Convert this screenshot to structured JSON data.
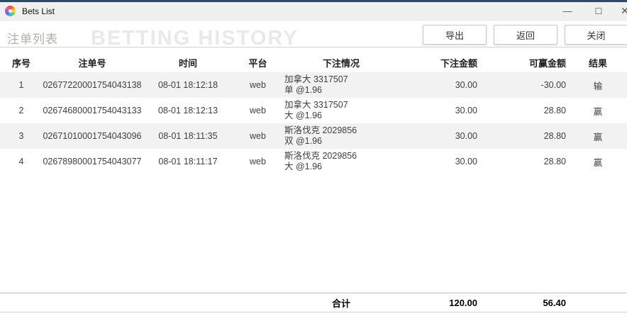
{
  "window": {
    "title": "Bets List",
    "controls": {
      "minimize": "—",
      "maximize": "☐",
      "close": "✕"
    }
  },
  "header": {
    "title": "注单列表",
    "watermark": "BETTING HISTORY",
    "buttons": [
      {
        "label": "导出"
      },
      {
        "label": "返回"
      },
      {
        "label": "关闭"
      }
    ]
  },
  "table": {
    "columns": [
      "序号",
      "注单号",
      "时间",
      "平台",
      "下注情况",
      "下注金额",
      "可赢金额",
      "结果"
    ],
    "rows": [
      {
        "no": "1",
        "bet_id": "02677220001754043138",
        "time": "08-01 18:12:18",
        "platform": "web",
        "detail_line1": "加拿大 3317507",
        "detail_line2": "单 @1.96",
        "amount": "30.00",
        "win": "-30.00",
        "result": "输"
      },
      {
        "no": "2",
        "bet_id": "02674680001754043133",
        "time": "08-01 18:12:13",
        "platform": "web",
        "detail_line1": "加拿大 3317507",
        "detail_line2": "大 @1.96",
        "amount": "30.00",
        "win": "28.80",
        "result": "赢"
      },
      {
        "no": "3",
        "bet_id": "02671010001754043096",
        "time": "08-01 18:11:35",
        "platform": "web",
        "detail_line1": "斯洛伐克 2029856",
        "detail_line2": "双 @1.96",
        "amount": "30.00",
        "win": "28.80",
        "result": "赢"
      },
      {
        "no": "4",
        "bet_id": "02678980001754043077",
        "time": "08-01 18:11:17",
        "platform": "web",
        "detail_line1": "斯洛伐克 2029856",
        "detail_line2": "大 @1.96",
        "amount": "30.00",
        "win": "28.80",
        "result": "赢"
      }
    ],
    "footer": {
      "label": "合计",
      "total_amount": "120.00",
      "total_win": "56.40"
    }
  },
  "colors": {
    "accent_bar": "#33466b",
    "titlebar_bg": "#f0f0ef",
    "stripe": "#f2f2f2",
    "watermark": "#e9e9e9"
  }
}
